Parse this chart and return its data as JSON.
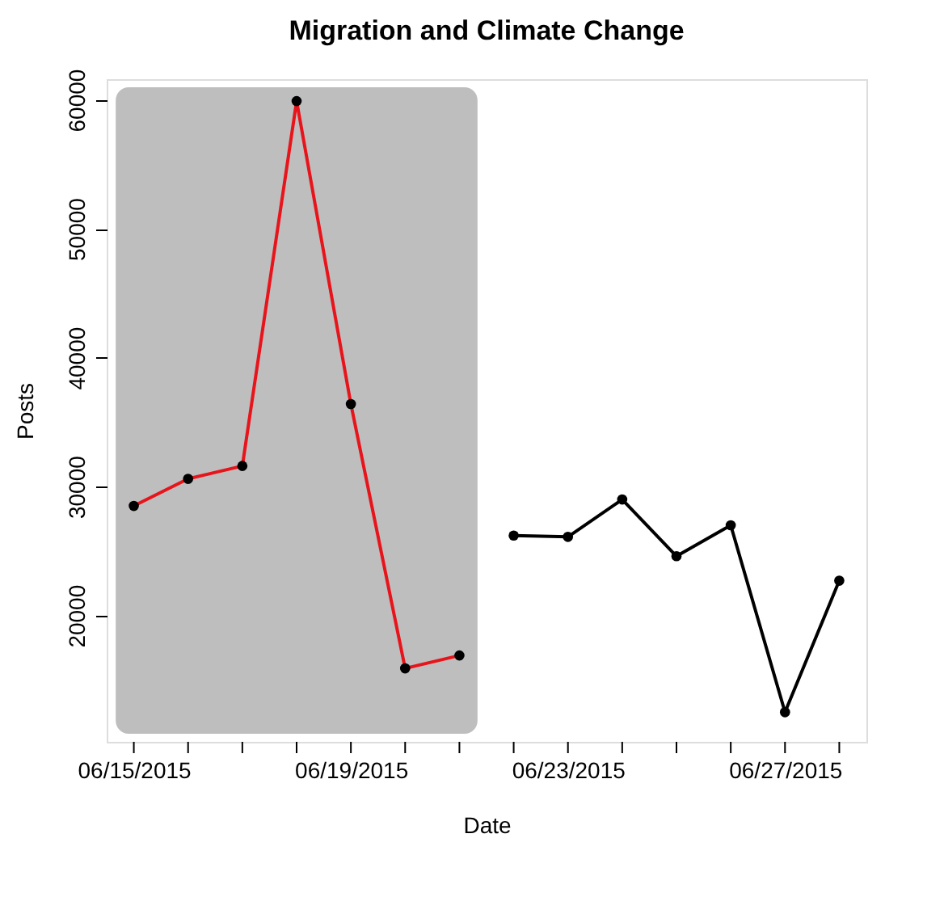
{
  "chart_data": {
    "type": "line",
    "title": "Migration and Climate Change",
    "xlabel": "Date",
    "ylabel": "Posts",
    "series": [
      {
        "color": "#e8141b",
        "x": [
          "2015-06-15",
          "2015-06-16",
          "2015-06-17",
          "2015-06-18",
          "2015-06-19",
          "2015-06-20",
          "2015-06-21"
        ],
        "values": [
          28500,
          30600,
          31600,
          59900,
          36400,
          15900,
          16900
        ]
      },
      {
        "color": "#000000",
        "x": [
          "2015-06-22",
          "2015-06-23",
          "2015-06-24",
          "2015-06-25",
          "2015-06-26",
          "2015-06-27",
          "2015-06-28"
        ],
        "values": [
          26200,
          26100,
          29000,
          24600,
          27000,
          12500,
          22700
        ]
      }
    ],
    "xlim": [
      "2015-06-14T12:00",
      "2015-06-28T12:00"
    ],
    "xticks": [
      {
        "value": "2015-06-15",
        "label": "06/15/2015"
      },
      {
        "value": "2015-06-16",
        "label": null
      },
      {
        "value": "2015-06-17",
        "label": null
      },
      {
        "value": "2015-06-18",
        "label": null
      },
      {
        "value": "2015-06-19",
        "label": "06/19/2015"
      },
      {
        "value": "2015-06-20",
        "label": null
      },
      {
        "value": "2015-06-21",
        "label": null
      },
      {
        "value": "2015-06-22",
        "label": null
      },
      {
        "value": "2015-06-23",
        "label": "06/23/2015"
      },
      {
        "value": "2015-06-24",
        "label": null
      },
      {
        "value": "2015-06-25",
        "label": null
      },
      {
        "value": "2015-06-26",
        "label": null
      },
      {
        "value": "2015-06-27",
        "label": "06/27/2015"
      },
      {
        "value": "2015-06-28",
        "label": null
      }
    ],
    "ylim": [
      10200,
      61600
    ],
    "yticks": [
      20000,
      30000,
      40000,
      50000,
      60000
    ],
    "bands": [
      {
        "axis": "x",
        "from": "2015-06-14T16:00",
        "to": "2015-06-21T08:00",
        "color": "#bebebe"
      }
    ],
    "marker": "circle",
    "line_style": "solid"
  }
}
